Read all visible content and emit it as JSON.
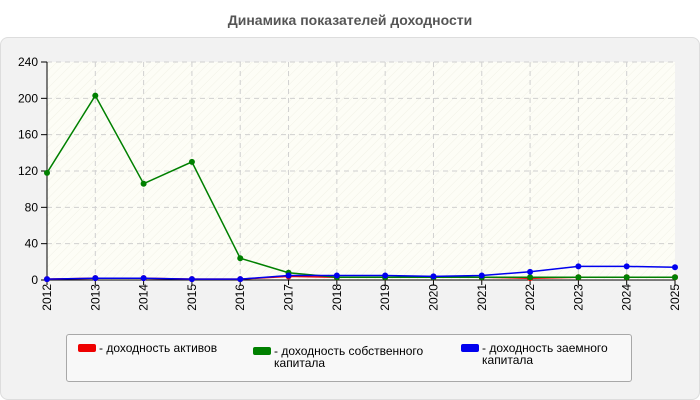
{
  "chart_data": {
    "type": "line",
    "title": "Динамика показателей доходности",
    "x": [
      "2012",
      "2013",
      "2014",
      "2015",
      "2016",
      "2017",
      "2018",
      "2019",
      "2020",
      "2021",
      "2022",
      "2023",
      "2024",
      "2025"
    ],
    "ylim": [
      0,
      240
    ],
    "yticks": [
      0,
      40,
      80,
      120,
      160,
      200,
      240
    ],
    "grid": true,
    "legend_position": "bottom",
    "series": [
      {
        "name": "- доходность активов",
        "color": "#ee0000",
        "values": [
          1,
          2,
          2,
          1,
          1,
          4,
          3,
          3,
          3,
          3,
          2,
          3,
          3,
          3
        ]
      },
      {
        "name": "- доходность собственного капитала",
        "color": "#008000",
        "values": [
          118,
          203,
          106,
          130,
          24,
          8,
          3,
          3,
          3,
          3,
          3,
          3,
          3,
          3
        ]
      },
      {
        "name": "- доходность заемного капитала",
        "color": "#0000ee",
        "values": [
          1,
          2,
          2,
          1,
          1,
          5,
          5,
          5,
          4,
          5,
          9,
          15,
          15,
          14
        ]
      }
    ]
  }
}
